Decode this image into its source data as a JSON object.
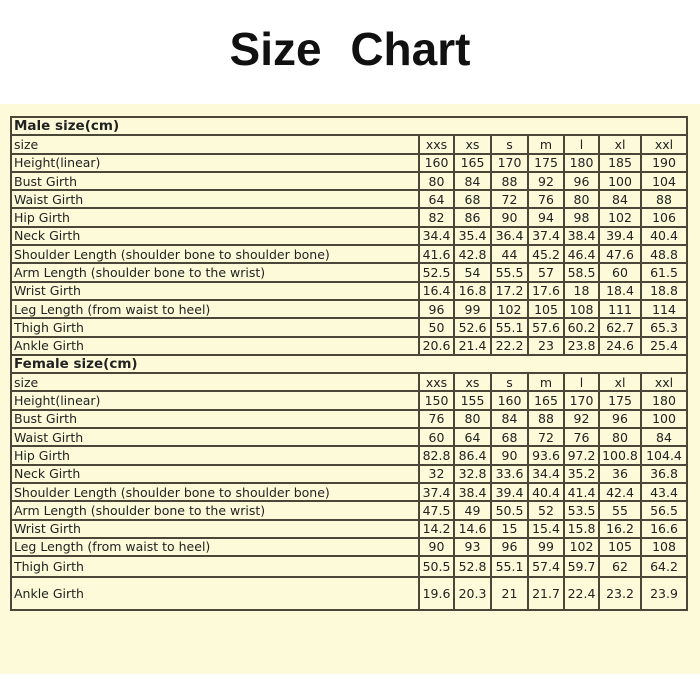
{
  "title": "Size  Chart",
  "sizes": [
    "xxs",
    "xs",
    "s",
    "m",
    "l",
    "xl",
    "xxl"
  ],
  "male": {
    "heading": "Male size(cm)",
    "size_label": "size",
    "rows": [
      {
        "label": "Height(linear)",
        "values": [
          "160",
          "165",
          "170",
          "175",
          "180",
          "185",
          "190"
        ]
      },
      {
        "label": "Bust Girth",
        "values": [
          "80",
          "84",
          "88",
          "92",
          "96",
          "100",
          "104"
        ]
      },
      {
        "label": "Waist Girth",
        "values": [
          "64",
          "68",
          "72",
          "76",
          "80",
          "84",
          "88"
        ]
      },
      {
        "label": "Hip Girth",
        "values": [
          "82",
          "86",
          "90",
          "94",
          "98",
          "102",
          "106"
        ]
      },
      {
        "label": "Neck Girth",
        "values": [
          "34.4",
          "35.4",
          "36.4",
          "37.4",
          "38.4",
          "39.4",
          "40.4"
        ]
      },
      {
        "label": "Shoulder Length (shoulder bone to shoulder bone)",
        "values": [
          "41.6",
          "42.8",
          "44",
          "45.2",
          "46.4",
          "47.6",
          "48.8"
        ]
      },
      {
        "label": "Arm Length (shoulder bone to the wrist)",
        "values": [
          "52.5",
          "54",
          "55.5",
          "57",
          "58.5",
          "60",
          "61.5"
        ]
      },
      {
        "label": "Wrist Girth",
        "values": [
          "16.4",
          "16.8",
          "17.2",
          "17.6",
          "18",
          "18.4",
          "18.8"
        ]
      },
      {
        "label": "Leg Length (from waist to heel)",
        "values": [
          "96",
          "99",
          "102",
          "105",
          "108",
          "111",
          "114"
        ]
      },
      {
        "label": "Thigh Girth",
        "values": [
          "50",
          "52.6",
          "55.1",
          "57.6",
          "60.2",
          "62.7",
          "65.3"
        ]
      },
      {
        "label": "Ankle Girth",
        "values": [
          "20.6",
          "21.4",
          "22.2",
          "23",
          "23.8",
          "24.6",
          "25.4"
        ]
      }
    ]
  },
  "female": {
    "heading": "Female size(cm)",
    "size_label": "size",
    "rows": [
      {
        "label": "Height(linear)",
        "values": [
          "150",
          "155",
          "160",
          "165",
          "170",
          "175",
          "180"
        ]
      },
      {
        "label": "Bust Girth",
        "values": [
          "76",
          "80",
          "84",
          "88",
          "92",
          "96",
          "100"
        ]
      },
      {
        "label": "Waist Girth",
        "values": [
          "60",
          "64",
          "68",
          "72",
          "76",
          "80",
          "84"
        ]
      },
      {
        "label": "Hip Girth",
        "values": [
          "82.8",
          "86.4",
          "90",
          "93.6",
          "97.2",
          "100.8",
          "104.4"
        ]
      },
      {
        "label": "Neck Girth",
        "values": [
          "32",
          "32.8",
          "33.6",
          "34.4",
          "35.2",
          "36",
          "36.8"
        ]
      },
      {
        "label": "Shoulder Length (shoulder bone to shoulder bone)",
        "values": [
          "37.4",
          "38.4",
          "39.4",
          "40.4",
          "41.4",
          "42.4",
          "43.4"
        ]
      },
      {
        "label": "Arm Length (shoulder bone to the wrist)",
        "values": [
          "47.5",
          "49",
          "50.5",
          "52",
          "53.5",
          "55",
          "56.5"
        ]
      },
      {
        "label": "Wrist Girth",
        "values": [
          "14.2",
          "14.6",
          "15",
          "15.4",
          "15.8",
          "16.2",
          "16.6"
        ]
      },
      {
        "label": "Leg Length (from waist to heel)",
        "values": [
          "90",
          "93",
          "96",
          "99",
          "102",
          "105",
          "108"
        ]
      },
      {
        "label": "Thigh Girth",
        "values": [
          "50.5",
          "52.8",
          "55.1",
          "57.4",
          "59.7",
          "62",
          "64.2"
        ]
      },
      {
        "label": "Ankle Girth",
        "values": [
          "19.6",
          "20.3",
          "21",
          "21.7",
          "22.4",
          "23.2",
          "23.9"
        ]
      }
    ]
  }
}
